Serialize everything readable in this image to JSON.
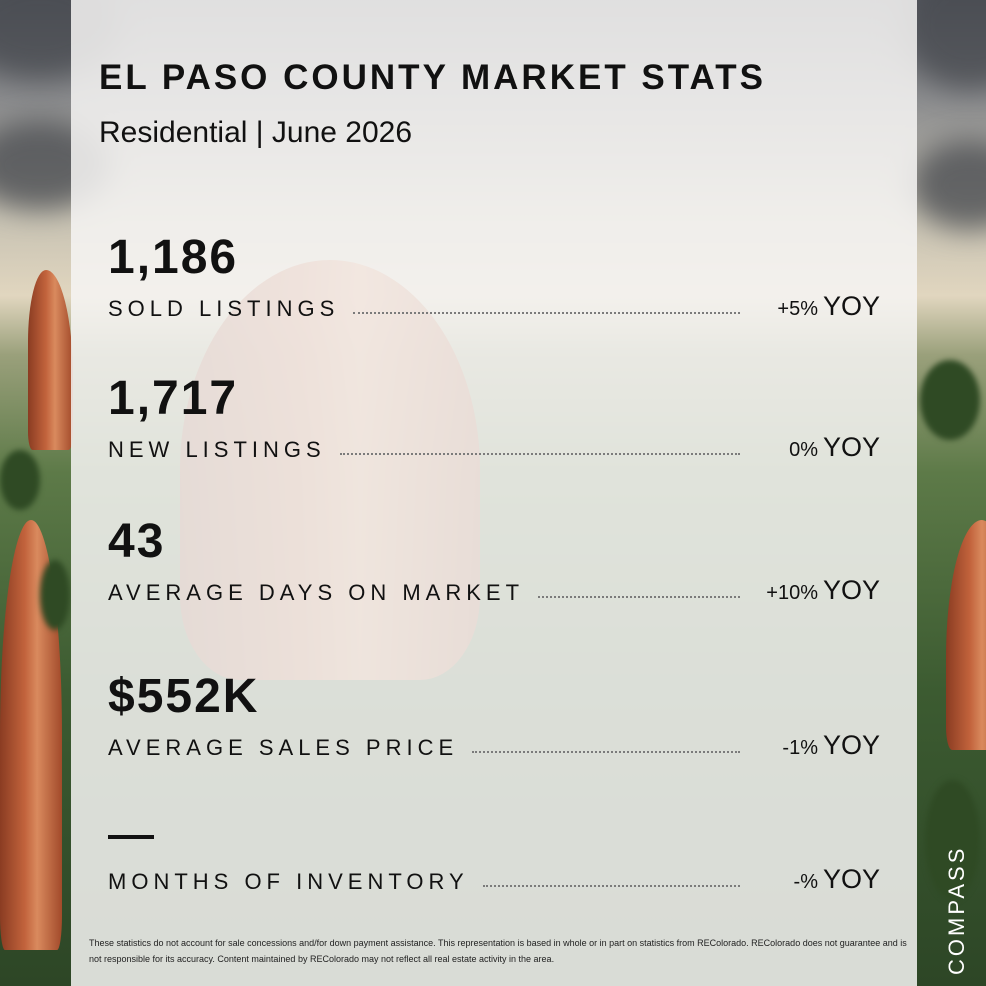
{
  "header": {
    "title": "EL PASO COUNTY MARKET STATS",
    "subtitle": "Residential | June 2026"
  },
  "stats": [
    {
      "value": "1,186",
      "label": "SOLD LISTINGS",
      "change": "+5%",
      "period": "YOY"
    },
    {
      "value": "1,717",
      "label": "NEW LISTINGS",
      "change": "0%",
      "period": "YOY"
    },
    {
      "value": "43",
      "label": "AVERAGE DAYS ON MARKET",
      "change": "+10%",
      "period": "YOY"
    },
    {
      "value": "$552K",
      "label": "AVERAGE SALES PRICE",
      "change": "-1%",
      "period": "YOY"
    },
    {
      "value": "—",
      "label": "MONTHS OF INVENTORY",
      "change": "-%",
      "period": "YOY"
    }
  ],
  "disclaimer": "These statistics do not account for sale concessions and/for down payment assistance. This representation is based in whole or in part on statistics from REColorado. REColorado does not guarantee and is not responsible for its accuracy. Content maintained by REColorado may not reflect all real estate activity in the area.",
  "brand": "COMPASS"
}
